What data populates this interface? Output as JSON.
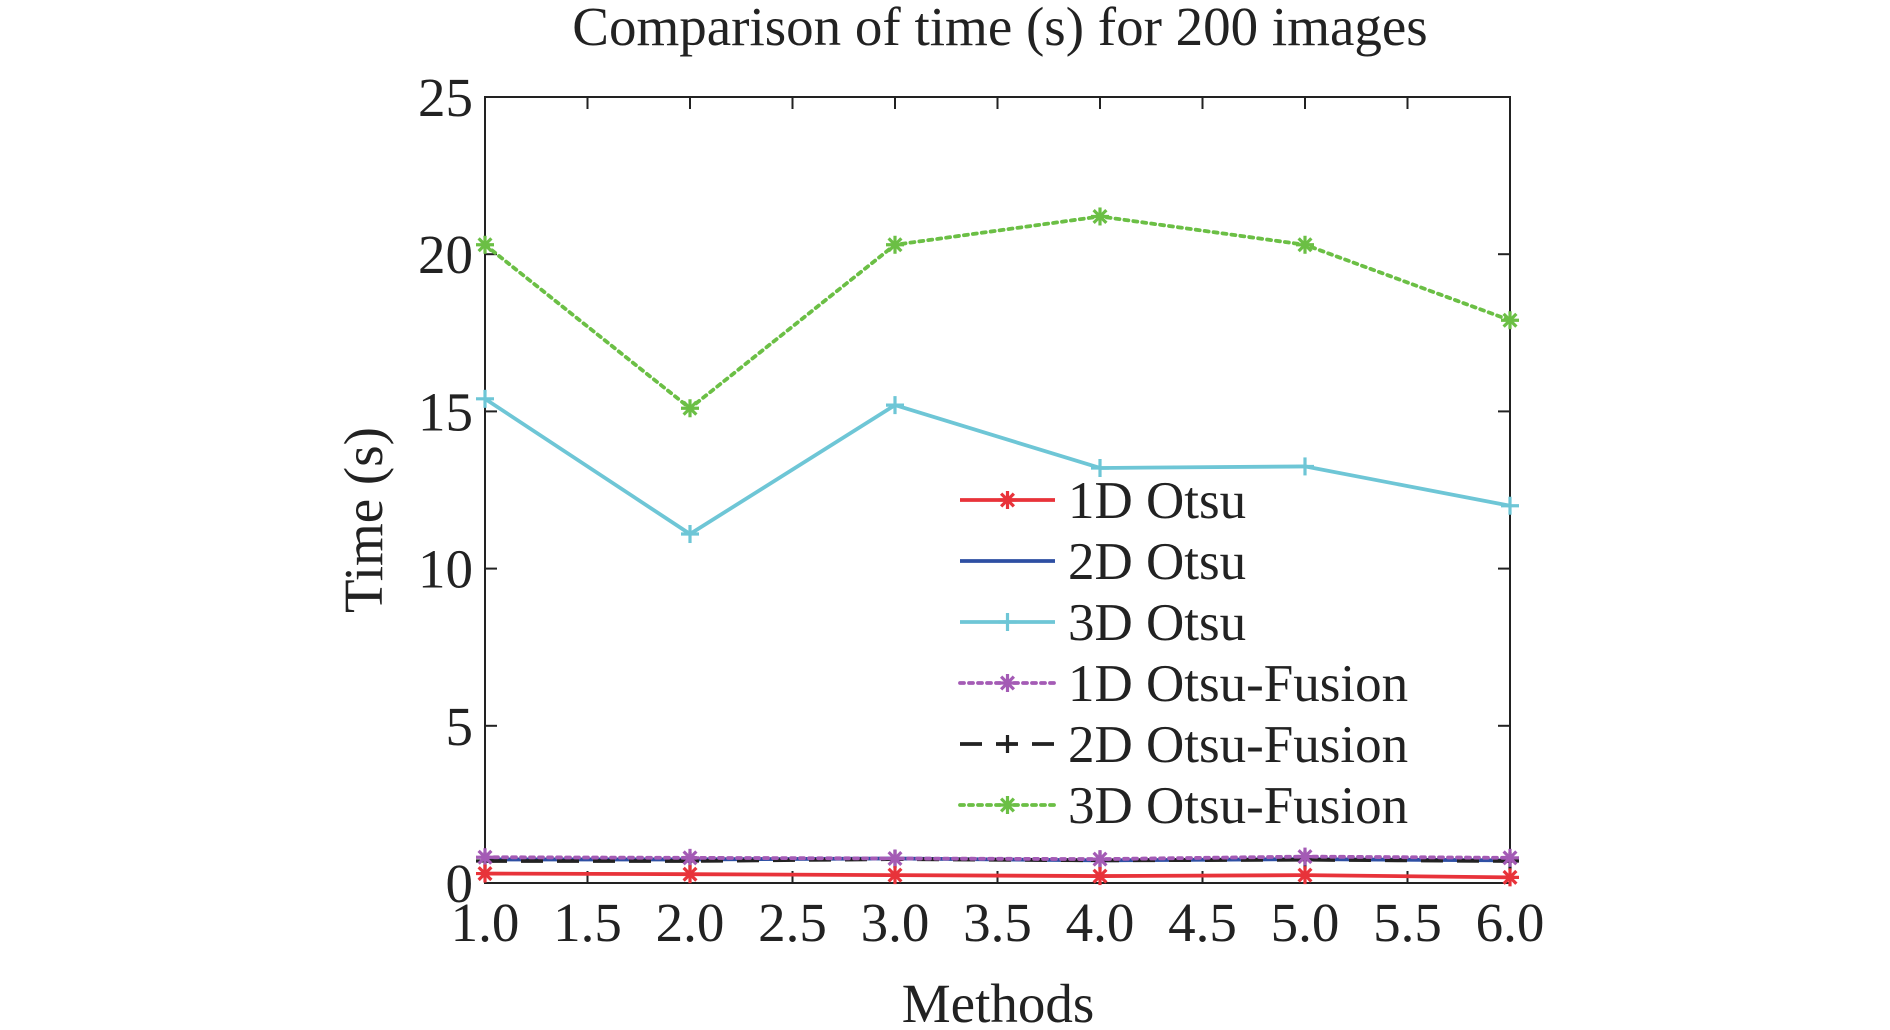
{
  "chart_data": {
    "type": "line",
    "title": "Comparison of time (s) for 200 images",
    "xlabel": "Methods",
    "ylabel": "Time (s)",
    "xlim": [
      1.0,
      6.0
    ],
    "ylim": [
      0,
      25
    ],
    "x_ticks": [
      "1.0",
      "1.5",
      "2.0",
      "2.5",
      "3.0",
      "3.5",
      "4.0",
      "4.5",
      "5.0",
      "5.5",
      "6.0"
    ],
    "y_ticks": [
      "0",
      "5",
      "10",
      "15",
      "20",
      "25"
    ],
    "x": [
      1,
      2,
      3,
      4,
      5,
      6
    ],
    "grid": false,
    "legend_position": "right-center",
    "series": [
      {
        "name": "1D Otsu",
        "values": [
          0.3,
          0.28,
          0.25,
          0.22,
          0.25,
          0.18
        ],
        "color": "#e8333a",
        "line_style": "solid",
        "marker": "asterisk"
      },
      {
        "name": "2D Otsu",
        "values": [
          0.75,
          0.75,
          0.78,
          0.72,
          0.76,
          0.72
        ],
        "color": "#2e4fa3",
        "line_style": "solid",
        "marker": "none"
      },
      {
        "name": "3D Otsu",
        "values": [
          15.4,
          11.1,
          15.2,
          13.2,
          13.25,
          12.0
        ],
        "color": "#6ec6d6",
        "line_style": "solid",
        "marker": "plus"
      },
      {
        "name": "1D Otsu-Fusion",
        "values": [
          0.82,
          0.8,
          0.78,
          0.76,
          0.84,
          0.8
        ],
        "color": "#a45bb5",
        "line_style": "dotted",
        "marker": "asterisk"
      },
      {
        "name": "2D Otsu-Fusion",
        "values": [
          0.7,
          0.7,
          0.76,
          0.72,
          0.74,
          0.7
        ],
        "color": "#222222",
        "line_style": "dashed",
        "marker": "plus"
      },
      {
        "name": "3D Otsu-Fusion",
        "values": [
          20.3,
          15.1,
          20.3,
          21.2,
          20.3,
          17.9
        ],
        "color": "#6bbf45",
        "line_style": "dotted",
        "marker": "asterisk"
      }
    ]
  }
}
